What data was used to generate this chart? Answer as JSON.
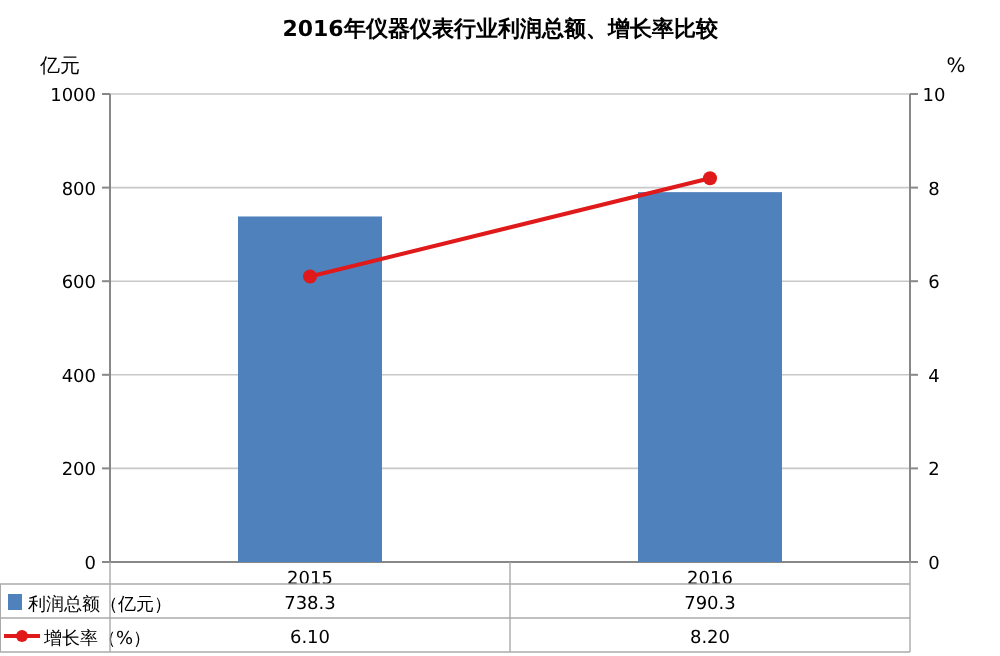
{
  "chart_data": {
    "type": "bar",
    "title": "2016年仪器仪表行业利润总额、增长率比较",
    "ylabel": "亿元",
    "y2label": "%",
    "categories": [
      "2015",
      "2016"
    ],
    "series": [
      {
        "name": "利润总额（亿元）",
        "color": "#4f81bd",
        "values": [
          738.3,
          790.3
        ],
        "value_labels": [
          "738.3",
          "790.3"
        ]
      },
      {
        "name": "增长率（%）",
        "type": "line",
        "axis": "y2",
        "color": "#e0191b",
        "marker": "circle",
        "values": [
          6.1,
          8.2
        ],
        "value_labels": [
          "6.10",
          "8.20"
        ]
      }
    ],
    "ylim": [
      0,
      1000
    ],
    "yticks": [
      0,
      200,
      400,
      600,
      800,
      1000
    ],
    "y2lim": [
      0,
      10
    ],
    "y2ticks": [
      0,
      2,
      4,
      6,
      8,
      10
    ],
    "grid": "y",
    "legend": "bottom"
  }
}
